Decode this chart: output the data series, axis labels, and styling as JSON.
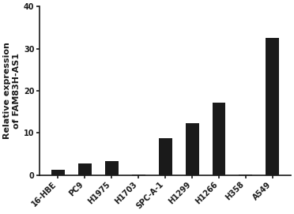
{
  "categories": [
    "16-HBE",
    "PC9",
    "H1975",
    "H1703",
    "SPC-A-1",
    "H1299",
    "H1266",
    "H358",
    "A549"
  ],
  "values": [
    1.2,
    2.7,
    3.4,
    0.2,
    8.7,
    12.3,
    17.2,
    0.05,
    32.5
  ],
  "bar_color": "#1a1a1a",
  "ylabel_line1": "Relative expression",
  "ylabel_line2": "of FAM83H-AS1",
  "ylim": [
    0,
    40
  ],
  "yticks": [
    0,
    10,
    20,
    30,
    40
  ],
  "background_color": "#ffffff",
  "bar_width": 0.5,
  "tick_fontsize": 7.0,
  "label_fontsize": 8.0
}
